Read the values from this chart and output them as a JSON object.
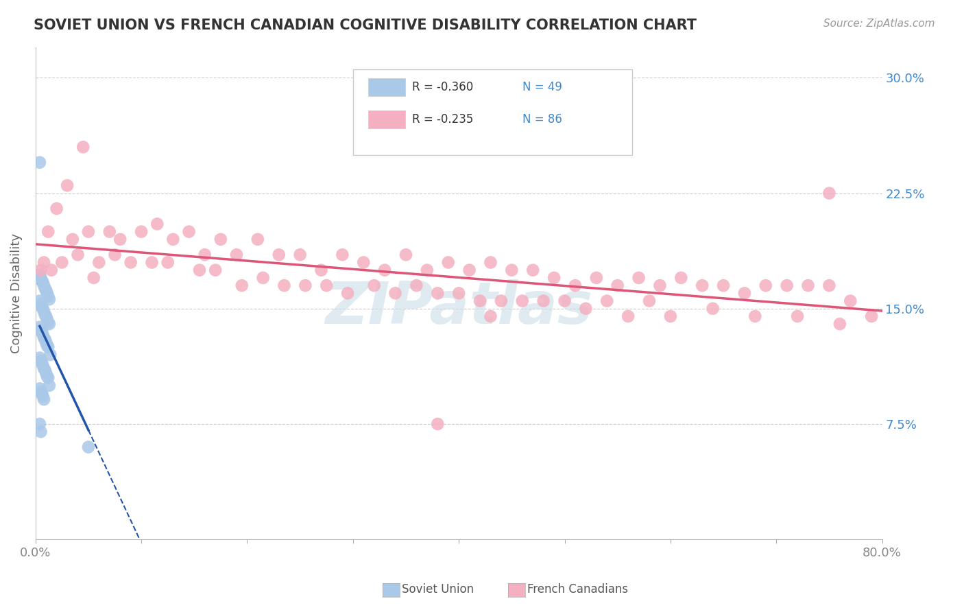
{
  "title": "SOVIET UNION VS FRENCH CANADIAN COGNITIVE DISABILITY CORRELATION CHART",
  "source": "Source: ZipAtlas.com",
  "ylabel": "Cognitive Disability",
  "xlim": [
    0.0,
    0.8
  ],
  "ylim": [
    0.0,
    0.32
  ],
  "xticks": [
    0.0,
    0.1,
    0.2,
    0.3,
    0.4,
    0.5,
    0.6,
    0.7,
    0.8
  ],
  "xticklabels": [
    "0.0%",
    "",
    "",
    "",
    "",
    "",
    "",
    "",
    "80.0%"
  ],
  "yticks": [
    0.0,
    0.075,
    0.15,
    0.225,
    0.3
  ],
  "yticklabels": [
    "",
    "7.5%",
    "15.0%",
    "22.5%",
    "30.0%"
  ],
  "legend_r1": "R = -0.360",
  "legend_n1": "N = 49",
  "legend_r2": "R = -0.235",
  "legend_n2": "N = 86",
  "legend_color1": "#aac8e8",
  "legend_color2": "#f4b0c0",
  "soviet_scatter_color": "#aac8e8",
  "french_scatter_color": "#f4b0c0",
  "soviet_line_color": "#2255aa",
  "french_line_color": "#dd5577",
  "background_color": "#ffffff",
  "grid_color": "#cccccc",
  "title_color": "#333333",
  "source_color": "#999999",
  "tick_color_y": "#4488cc",
  "tick_color_x": "#888888",
  "watermark": "ZIPatlas",
  "watermark_color": "#ccdde8",
  "soviet_x": [
    0.004,
    0.005,
    0.006,
    0.007,
    0.008,
    0.009,
    0.01,
    0.011,
    0.012,
    0.013,
    0.004,
    0.005,
    0.006,
    0.007,
    0.008,
    0.009,
    0.01,
    0.011,
    0.012,
    0.013,
    0.004,
    0.005,
    0.006,
    0.007,
    0.008,
    0.009,
    0.01,
    0.011,
    0.012,
    0.014,
    0.004,
    0.005,
    0.006,
    0.007,
    0.008,
    0.009,
    0.01,
    0.011,
    0.012,
    0.013,
    0.004,
    0.005,
    0.006,
    0.007,
    0.008,
    0.004,
    0.005,
    0.05,
    0.004
  ],
  "soviet_y": [
    0.172,
    0.17,
    0.168,
    0.167,
    0.165,
    0.163,
    0.162,
    0.16,
    0.158,
    0.156,
    0.155,
    0.153,
    0.151,
    0.15,
    0.148,
    0.146,
    0.145,
    0.143,
    0.141,
    0.14,
    0.138,
    0.136,
    0.135,
    0.133,
    0.131,
    0.13,
    0.128,
    0.126,
    0.125,
    0.12,
    0.118,
    0.116,
    0.115,
    0.113,
    0.111,
    0.11,
    0.108,
    0.106,
    0.105,
    0.1,
    0.098,
    0.096,
    0.095,
    0.093,
    0.091,
    0.245,
    0.07,
    0.06,
    0.075
  ],
  "french_x": [
    0.005,
    0.012,
    0.02,
    0.03,
    0.035,
    0.05,
    0.06,
    0.07,
    0.08,
    0.1,
    0.115,
    0.13,
    0.145,
    0.16,
    0.175,
    0.19,
    0.21,
    0.23,
    0.25,
    0.27,
    0.29,
    0.31,
    0.33,
    0.35,
    0.37,
    0.39,
    0.41,
    0.43,
    0.45,
    0.47,
    0.49,
    0.51,
    0.53,
    0.55,
    0.57,
    0.59,
    0.61,
    0.63,
    0.65,
    0.67,
    0.69,
    0.71,
    0.73,
    0.75,
    0.77,
    0.79,
    0.008,
    0.015,
    0.025,
    0.04,
    0.055,
    0.075,
    0.09,
    0.11,
    0.125,
    0.155,
    0.17,
    0.195,
    0.215,
    0.235,
    0.255,
    0.275,
    0.295,
    0.32,
    0.34,
    0.36,
    0.38,
    0.4,
    0.42,
    0.44,
    0.46,
    0.48,
    0.5,
    0.52,
    0.54,
    0.56,
    0.58,
    0.6,
    0.64,
    0.68,
    0.72,
    0.76,
    0.75,
    0.38,
    0.43,
    0.045
  ],
  "french_y": [
    0.175,
    0.2,
    0.215,
    0.23,
    0.195,
    0.2,
    0.18,
    0.2,
    0.195,
    0.2,
    0.205,
    0.195,
    0.2,
    0.185,
    0.195,
    0.185,
    0.195,
    0.185,
    0.185,
    0.175,
    0.185,
    0.18,
    0.175,
    0.185,
    0.175,
    0.18,
    0.175,
    0.18,
    0.175,
    0.175,
    0.17,
    0.165,
    0.17,
    0.165,
    0.17,
    0.165,
    0.17,
    0.165,
    0.165,
    0.16,
    0.165,
    0.165,
    0.165,
    0.165,
    0.155,
    0.145,
    0.18,
    0.175,
    0.18,
    0.185,
    0.17,
    0.185,
    0.18,
    0.18,
    0.18,
    0.175,
    0.175,
    0.165,
    0.17,
    0.165,
    0.165,
    0.165,
    0.16,
    0.165,
    0.16,
    0.165,
    0.16,
    0.16,
    0.155,
    0.155,
    0.155,
    0.155,
    0.155,
    0.15,
    0.155,
    0.145,
    0.155,
    0.145,
    0.15,
    0.145,
    0.145,
    0.14,
    0.225,
    0.075,
    0.145,
    0.255
  ]
}
